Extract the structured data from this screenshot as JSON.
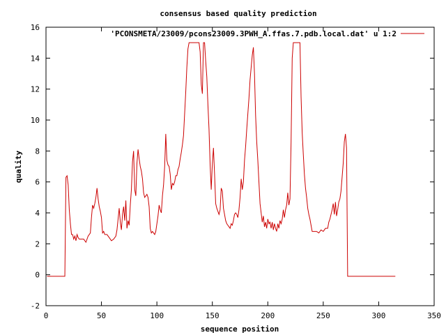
{
  "chart_data": {
    "type": "line",
    "title": "consensus based quality prediction",
    "xlabel": "sequence position",
    "ylabel": "quality",
    "xlim": [
      0,
      350
    ],
    "ylim": [
      -2,
      16
    ],
    "x_ticks": [
      0,
      50,
      100,
      150,
      200,
      250,
      300,
      350
    ],
    "y_ticks": [
      -2,
      0,
      2,
      4,
      6,
      8,
      10,
      12,
      14,
      16
    ],
    "grid": false,
    "legend_position": "top-right",
    "series": [
      {
        "name": "'PCONSMETA/23009/pcons23009.3PWH_A.ffas.7.pdb.local.dat' u 1:2",
        "color": "#cc0000",
        "points": [
          [
            1,
            -0.1
          ],
          [
            17,
            -0.1
          ],
          [
            18,
            6.3
          ],
          [
            19,
            6.4
          ],
          [
            20,
            5.8
          ],
          [
            21,
            4.2
          ],
          [
            22,
            3.3
          ],
          [
            23,
            2.6
          ],
          [
            24,
            2.6
          ],
          [
            25,
            2.3
          ],
          [
            26,
            2.5
          ],
          [
            27,
            2.2
          ],
          [
            28,
            2.6
          ],
          [
            29,
            2.4
          ],
          [
            30,
            2.3
          ],
          [
            32,
            2.3
          ],
          [
            34,
            2.3
          ],
          [
            36,
            2.1
          ],
          [
            38,
            2.5
          ],
          [
            40,
            2.7
          ],
          [
            41,
            3.7
          ],
          [
            42,
            4.5
          ],
          [
            43,
            4.3
          ],
          [
            44,
            4.6
          ],
          [
            45,
            5.0
          ],
          [
            46,
            5.6
          ],
          [
            47,
            4.9
          ],
          [
            48,
            4.4
          ],
          [
            49,
            4.1
          ],
          [
            50,
            3.7
          ],
          [
            51,
            2.7
          ],
          [
            52,
            2.8
          ],
          [
            53,
            2.6
          ],
          [
            55,
            2.6
          ],
          [
            57,
            2.4
          ],
          [
            59,
            2.2
          ],
          [
            61,
            2.3
          ],
          [
            63,
            2.5
          ],
          [
            64,
            2.9
          ],
          [
            65,
            3.6
          ],
          [
            66,
            4.3
          ],
          [
            67,
            3.4
          ],
          [
            68,
            2.9
          ],
          [
            69,
            3.9
          ],
          [
            70,
            4.4
          ],
          [
            71,
            3.5
          ],
          [
            72,
            4.8
          ],
          [
            73,
            3.0
          ],
          [
            74,
            3.5
          ],
          [
            75,
            3.2
          ],
          [
            76,
            4.5
          ],
          [
            77,
            5.5
          ],
          [
            78,
            7.3
          ],
          [
            79,
            8.0
          ],
          [
            80,
            5.5
          ],
          [
            81,
            5.1
          ],
          [
            82,
            7.2
          ],
          [
            83,
            8.1
          ],
          [
            84,
            7.5
          ],
          [
            85,
            7.0
          ],
          [
            86,
            6.7
          ],
          [
            87,
            6.2
          ],
          [
            88,
            5.3
          ],
          [
            89,
            5.0
          ],
          [
            90,
            5.1
          ],
          [
            91,
            5.2
          ],
          [
            92,
            5.0
          ],
          [
            93,
            4.4
          ],
          [
            94,
            3.0
          ],
          [
            95,
            2.7
          ],
          [
            96,
            2.8
          ],
          [
            97,
            2.7
          ],
          [
            98,
            2.6
          ],
          [
            99,
            2.8
          ],
          [
            100,
            3.3
          ],
          [
            101,
            3.8
          ],
          [
            102,
            4.5
          ],
          [
            103,
            4.2
          ],
          [
            104,
            4.0
          ],
          [
            105,
            5.1
          ],
          [
            106,
            5.8
          ],
          [
            107,
            7.0
          ],
          [
            108,
            9.1
          ],
          [
            109,
            7.4
          ],
          [
            110,
            7.1
          ],
          [
            111,
            7.0
          ],
          [
            112,
            6.5
          ],
          [
            113,
            5.5
          ],
          [
            114,
            5.9
          ],
          [
            115,
            5.8
          ],
          [
            116,
            6.0
          ],
          [
            117,
            6.4
          ],
          [
            118,
            6.4
          ],
          [
            119,
            6.8
          ],
          [
            120,
            7.0
          ],
          [
            121,
            7.5
          ],
          [
            122,
            7.9
          ],
          [
            123,
            8.4
          ],
          [
            124,
            9.0
          ],
          [
            125,
            10.4
          ],
          [
            126,
            11.8
          ],
          [
            127,
            13.4
          ],
          [
            128,
            14.6
          ],
          [
            129,
            15.0
          ],
          [
            134,
            15.0
          ],
          [
            138,
            15.0
          ],
          [
            139,
            14.4
          ],
          [
            140,
            12.3
          ],
          [
            141,
            11.7
          ],
          [
            142,
            15.0
          ],
          [
            143,
            15.0
          ],
          [
            144,
            13.8
          ],
          [
            145,
            12.8
          ],
          [
            146,
            11.0
          ],
          [
            147,
            9.4
          ],
          [
            148,
            7.1
          ],
          [
            149,
            5.5
          ],
          [
            150,
            7.2
          ],
          [
            151,
            8.2
          ],
          [
            152,
            6.5
          ],
          [
            153,
            4.6
          ],
          [
            154,
            4.3
          ],
          [
            155,
            4.1
          ],
          [
            156,
            3.9
          ],
          [
            157,
            4.2
          ],
          [
            158,
            5.6
          ],
          [
            159,
            5.4
          ],
          [
            160,
            4.3
          ],
          [
            161,
            3.9
          ],
          [
            162,
            3.5
          ],
          [
            163,
            3.3
          ],
          [
            164,
            3.2
          ],
          [
            165,
            3.1
          ],
          [
            166,
            3.0
          ],
          [
            167,
            3.3
          ],
          [
            168,
            3.2
          ],
          [
            169,
            3.5
          ],
          [
            170,
            3.9
          ],
          [
            171,
            4.0
          ],
          [
            172,
            3.9
          ],
          [
            173,
            3.7
          ],
          [
            174,
            4.2
          ],
          [
            175,
            5.0
          ],
          [
            176,
            6.2
          ],
          [
            177,
            5.5
          ],
          [
            178,
            6.0
          ],
          [
            179,
            7.4
          ],
          [
            180,
            8.3
          ],
          [
            181,
            9.4
          ],
          [
            182,
            10.4
          ],
          [
            183,
            11.4
          ],
          [
            184,
            12.6
          ],
          [
            185,
            13.4
          ],
          [
            186,
            14.2
          ],
          [
            187,
            14.7
          ],
          [
            188,
            13.0
          ],
          [
            189,
            10.3
          ],
          [
            190,
            8.6
          ],
          [
            191,
            7.4
          ],
          [
            192,
            6.0
          ],
          [
            193,
            4.6
          ],
          [
            194,
            4.0
          ],
          [
            195,
            3.4
          ],
          [
            196,
            3.8
          ],
          [
            197,
            3.1
          ],
          [
            198,
            3.4
          ],
          [
            199,
            3.0
          ],
          [
            200,
            3.6
          ],
          [
            201,
            3.3
          ],
          [
            202,
            3.4
          ],
          [
            203,
            3.0
          ],
          [
            204,
            3.4
          ],
          [
            205,
            2.9
          ],
          [
            206,
            3.3
          ],
          [
            207,
            3.0
          ],
          [
            208,
            2.8
          ],
          [
            209,
            3.3
          ],
          [
            210,
            3.0
          ],
          [
            211,
            3.5
          ],
          [
            212,
            3.3
          ],
          [
            213,
            3.6
          ],
          [
            214,
            4.2
          ],
          [
            215,
            3.7
          ],
          [
            216,
            4.2
          ],
          [
            217,
            4.5
          ],
          [
            218,
            5.3
          ],
          [
            219,
            4.5
          ],
          [
            220,
            4.9
          ],
          [
            221,
            8.6
          ],
          [
            222,
            14.0
          ],
          [
            223,
            15.0
          ],
          [
            226,
            15.0
          ],
          [
            229,
            15.0
          ],
          [
            230,
            11.5
          ],
          [
            231,
            9.2
          ],
          [
            232,
            7.8
          ],
          [
            233,
            6.5
          ],
          [
            234,
            5.6
          ],
          [
            235,
            5.0
          ],
          [
            236,
            4.3
          ],
          [
            237,
            3.9
          ],
          [
            238,
            3.6
          ],
          [
            239,
            3.2
          ],
          [
            240,
            2.8
          ],
          [
            242,
            2.8
          ],
          [
            244,
            2.8
          ],
          [
            246,
            2.7
          ],
          [
            248,
            2.9
          ],
          [
            250,
            2.8
          ],
          [
            252,
            3.0
          ],
          [
            254,
            3.0
          ],
          [
            255,
            3.4
          ],
          [
            256,
            3.6
          ],
          [
            257,
            3.9
          ],
          [
            258,
            4.2
          ],
          [
            259,
            4.6
          ],
          [
            260,
            3.9
          ],
          [
            261,
            4.7
          ],
          [
            262,
            3.8
          ],
          [
            263,
            4.2
          ],
          [
            264,
            4.7
          ],
          [
            265,
            4.9
          ],
          [
            266,
            5.4
          ],
          [
            267,
            6.3
          ],
          [
            268,
            7.2
          ],
          [
            269,
            8.6
          ],
          [
            270,
            9.1
          ],
          [
            271,
            8.2
          ],
          [
            272,
            -0.1
          ],
          [
            315,
            -0.1
          ]
        ]
      }
    ]
  }
}
